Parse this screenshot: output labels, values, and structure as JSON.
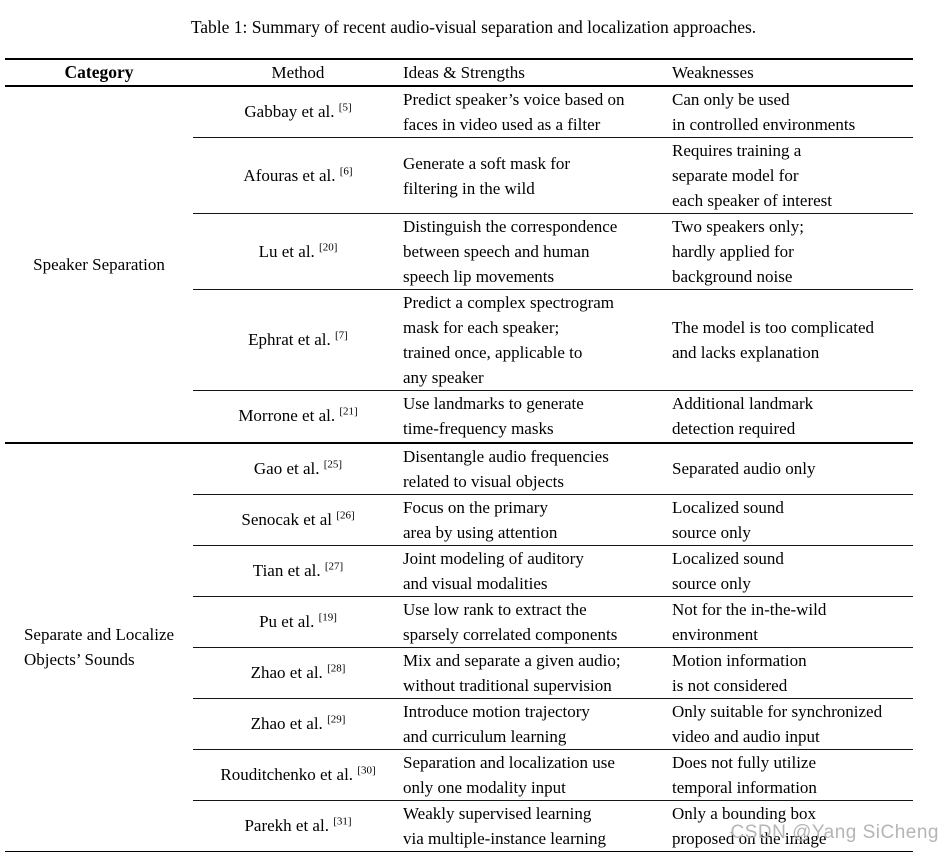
{
  "page": {
    "title": "Table 1: Summary of recent audio-visual separation and localization approaches.",
    "watermark": "CSDN @Yang SiCheng",
    "colors": {
      "text": "#000000",
      "rule": "#000000",
      "watermark": "#b5b5b5"
    }
  },
  "table": {
    "headers": {
      "category": "Category",
      "method": "Method",
      "ideas": "Ideas & Strengths",
      "weaknesses": "Weaknesses"
    },
    "groups": [
      {
        "category": "Speaker Separation",
        "rows": [
          {
            "method": "Gabbay et al.",
            "ref": "[5]",
            "ideas": "Predict speaker’s voice based on\nfaces in video used as a filter",
            "weaknesses": "Can only be used\nin controlled environments"
          },
          {
            "method": "Afouras et al.",
            "ref": "[6]",
            "ideas": "Generate a soft mask for\nfiltering in the wild",
            "weaknesses": "Requires training a\nseparate model for\neach speaker of interest"
          },
          {
            "method": "Lu et al.",
            "ref": "[20]",
            "ideas": "Distinguish the correspondence\nbetween speech and human\nspeech lip movements",
            "weaknesses": "Two speakers only;\nhardly applied for\nbackground noise"
          },
          {
            "method": "Ephrat et al.",
            "ref": "[7]",
            "ideas": "Predict a complex spectrogram\nmask for each speaker;\ntrained once, applicable to\nany speaker",
            "weaknesses": "The model is too complicated\nand lacks explanation"
          },
          {
            "method": "Morrone et al.",
            "ref": "[21]",
            "ideas": "Use landmarks to generate\ntime-frequency masks",
            "weaknesses": "Additional landmark\ndetection required"
          }
        ]
      },
      {
        "category": "Separate and Localize\nObjects’ Sounds",
        "rows": [
          {
            "method": "Gao et al.",
            "ref": "[25]",
            "ideas": "Disentangle audio frequencies\nrelated to visual objects",
            "weaknesses": "Separated audio only"
          },
          {
            "method": "Senocak et al",
            "ref": "[26]",
            "ideas": "Focus on the primary\narea by using attention",
            "weaknesses": "Localized sound\nsource only"
          },
          {
            "method": "Tian et al.",
            "ref": "[27]",
            "ideas": "Joint modeling of auditory\nand visual modalities",
            "weaknesses": "Localized sound\nsource only"
          },
          {
            "method": "Pu et al.",
            "ref": "[19]",
            "ideas": "Use low rank to extract the\nsparsely correlated components",
            "weaknesses": "Not for the in-the-wild\nenvironment"
          },
          {
            "method": "Zhao et al.",
            "ref": "[28]",
            "ideas": "Mix and separate a given audio;\nwithout traditional supervision",
            "weaknesses": "Motion information\nis not considered"
          },
          {
            "method": "Zhao et al.",
            "ref": "[29]",
            "ideas": "Introduce motion trajectory\nand curriculum learning",
            "weaknesses": "Only suitable for synchronized\nvideo and audio input"
          },
          {
            "method": "Rouditchenko et al.",
            "ref": "[30]",
            "ideas": "Separation and localization use\nonly one modality input",
            "weaknesses": "Does not fully utilize\ntemporal information"
          },
          {
            "method": "Parekh et al.",
            "ref": "[31]",
            "ideas": "Weakly supervised learning\nvia multiple-instance learning",
            "weaknesses": "Only a bounding box\nproposed on the image"
          }
        ]
      }
    ]
  }
}
